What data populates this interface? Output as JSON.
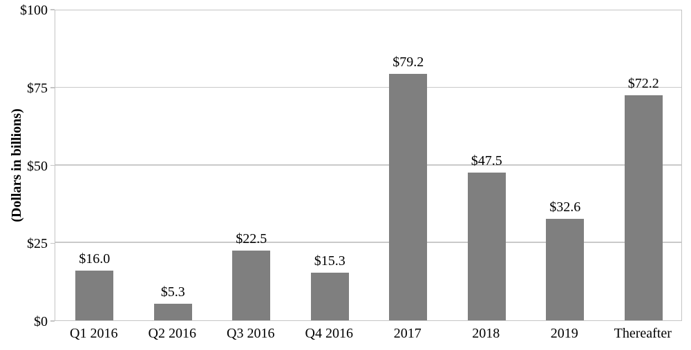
{
  "chart_data": {
    "type": "bar",
    "title": "",
    "categories": [
      "Q1 2016",
      "Q2 2016",
      "Q3 2016",
      "Q4 2016",
      "2017",
      "2018",
      "2019",
      "Thereafter"
    ],
    "values": [
      16.0,
      5.3,
      22.5,
      15.3,
      79.2,
      47.5,
      32.6,
      72.2
    ],
    "data_labels": [
      "$16.0",
      "$5.3",
      "$22.5",
      "$15.3",
      "$79.2",
      "$47.5",
      "$32.6",
      "$72.2"
    ],
    "xlabel": "",
    "ylabel": "(Dollars in billions)",
    "ylim": [
      0,
      100
    ],
    "y_ticks": [
      {
        "value": 0,
        "label": "$0"
      },
      {
        "value": 25,
        "label": "$25"
      },
      {
        "value": 50,
        "label": "$50"
      },
      {
        "value": 75,
        "label": "$75"
      },
      {
        "value": 100,
        "label": "$100"
      }
    ],
    "grid": true,
    "legend": "none",
    "colors": {
      "bar_fill": "#7f7f7f",
      "gridline": "#c9c9c9",
      "plot_border": "#c4c4c4",
      "text": "#000000",
      "background": "#ffffff"
    }
  }
}
